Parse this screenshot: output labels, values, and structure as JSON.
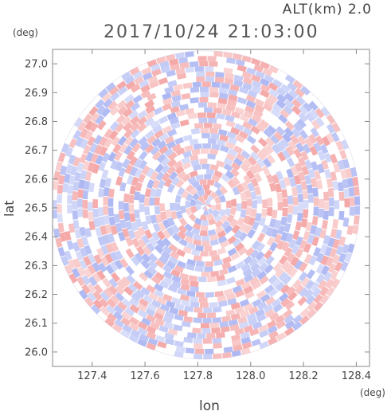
{
  "header": {
    "alt_label": "ALT(km)  2.0",
    "timestamp": "2017/10/24 21:03:00"
  },
  "chart_data": {
    "type": "heatmap",
    "subtype": "polar-radar-ppi",
    "xlabel": "lon",
    "ylabel": "lat",
    "x_unit": "(deg)",
    "y_unit": "(deg)",
    "xlim": [
      127.25,
      128.45
    ],
    "ylim": [
      25.95,
      27.05
    ],
    "x_ticks": [
      127.4,
      127.6,
      127.8,
      128.0,
      128.2,
      128.4
    ],
    "x_tick_labels": [
      "127.4",
      "127.6",
      "127.8",
      "128.0",
      "128.2",
      "128.4"
    ],
    "y_ticks": [
      26.0,
      26.1,
      26.2,
      26.3,
      26.4,
      26.5,
      26.6,
      26.7,
      26.8,
      26.9,
      27.0
    ],
    "y_tick_labels": [
      "26.0",
      "26.1",
      "26.2",
      "26.3",
      "26.4",
      "26.5",
      "26.6",
      "26.7",
      "26.8",
      "26.9",
      "27.0"
    ],
    "center": {
      "lon": 127.83,
      "lat": 26.51
    },
    "radius_deg_lat": 0.535,
    "colors": {
      "positive": "#f4a3a3",
      "negative": "#a9b4f2",
      "neutral": "#ffffff"
    }
  }
}
